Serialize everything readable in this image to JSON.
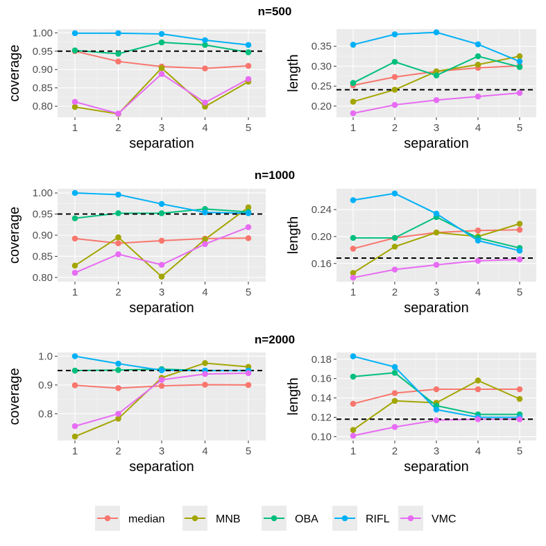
{
  "colors": {
    "median": "#F8766D",
    "MNB": "#A3A500",
    "OBA": "#00BF7D",
    "RIFL": "#00B0F6",
    "VMC": "#E76BF3"
  },
  "legend": {
    "entries": [
      "median",
      "MNB",
      "OBA",
      "RIFL",
      "VMC"
    ]
  },
  "chart_data": [
    {
      "row_title": "n=500",
      "type": "line",
      "xlabel": "separation",
      "ylabel": "coverage",
      "x": [
        1,
        2,
        3,
        4,
        5
      ],
      "xticks": [
        "1",
        "2",
        "3",
        "4",
        "5"
      ],
      "ylim": [
        0.77,
        1.01
      ],
      "yticks": [
        0.8,
        0.85,
        0.9,
        0.95,
        1.0
      ],
      "ytick_labels": [
        "0.80",
        "0.85",
        "0.90",
        "0.95",
        "1.00"
      ],
      "reference_line": 0.95,
      "series": [
        {
          "name": "median",
          "values": [
            0.95,
            0.922,
            0.908,
            0.903,
            0.91
          ]
        },
        {
          "name": "MNB",
          "values": [
            0.798,
            0.779,
            0.904,
            0.799,
            0.867
          ]
        },
        {
          "name": "OBA",
          "values": [
            0.952,
            0.943,
            0.974,
            0.967,
            0.947
          ]
        },
        {
          "name": "RIFL",
          "values": [
            0.999,
            0.999,
            0.997,
            0.98,
            0.967
          ]
        },
        {
          "name": "VMC",
          "values": [
            0.812,
            0.78,
            0.888,
            0.81,
            0.874
          ]
        }
      ]
    },
    {
      "row_title": "n=500",
      "type": "line",
      "xlabel": "separation",
      "ylabel": "length",
      "x": [
        1,
        2,
        3,
        4,
        5
      ],
      "xticks": [
        "1",
        "2",
        "3",
        "4",
        "5"
      ],
      "ylim": [
        0.172,
        0.393
      ],
      "yticks": [
        0.2,
        0.25,
        0.3,
        0.35
      ],
      "ytick_labels": [
        "0.20",
        "0.25",
        "0.30",
        "0.35"
      ],
      "reference_line": 0.241,
      "series": [
        {
          "name": "median",
          "values": [
            0.252,
            0.273,
            0.287,
            0.296,
            0.301
          ]
        },
        {
          "name": "MNB",
          "values": [
            0.211,
            0.241,
            0.287,
            0.304,
            0.325
          ]
        },
        {
          "name": "OBA",
          "values": [
            0.258,
            0.311,
            0.277,
            0.325,
            0.298
          ]
        },
        {
          "name": "RIFL",
          "values": [
            0.354,
            0.38,
            0.385,
            0.355,
            0.312
          ]
        },
        {
          "name": "VMC",
          "values": [
            0.182,
            0.203,
            0.215,
            0.224,
            0.233
          ]
        }
      ]
    },
    {
      "row_title": "n=1000",
      "type": "line",
      "xlabel": "separation",
      "ylabel": "coverage",
      "x": [
        1,
        2,
        3,
        4,
        5
      ],
      "xticks": [
        "1",
        "2",
        "3",
        "4",
        "5"
      ],
      "ylim": [
        0.79,
        1.01
      ],
      "yticks": [
        0.8,
        0.85,
        0.9,
        0.95,
        1.0
      ],
      "ytick_labels": [
        "0.80",
        "0.85",
        "0.90",
        "0.95",
        "1.00"
      ],
      "reference_line": 0.95,
      "series": [
        {
          "name": "median",
          "values": [
            0.892,
            0.881,
            0.887,
            0.892,
            0.893
          ]
        },
        {
          "name": "MNB",
          "values": [
            0.828,
            0.895,
            0.802,
            0.89,
            0.966
          ]
        },
        {
          "name": "OBA",
          "values": [
            0.94,
            0.952,
            0.952,
            0.962,
            0.955
          ]
        },
        {
          "name": "RIFL",
          "values": [
            1.0,
            0.996,
            0.974,
            0.954,
            0.952
          ]
        },
        {
          "name": "VMC",
          "values": [
            0.811,
            0.855,
            0.83,
            0.879,
            0.919
          ]
        }
      ]
    },
    {
      "row_title": "n=1000",
      "type": "line",
      "xlabel": "separation",
      "ylabel": "length",
      "x": [
        1,
        2,
        3,
        4,
        5
      ],
      "xticks": [
        "1",
        "2",
        "3",
        "4",
        "5"
      ],
      "ylim": [
        0.133,
        0.271
      ],
      "yticks": [
        0.16,
        0.2,
        0.24
      ],
      "ytick_labels": [
        "0.16",
        "0.20",
        "0.24"
      ],
      "reference_line": 0.168,
      "series": [
        {
          "name": "median",
          "values": [
            0.182,
            0.198,
            0.206,
            0.209,
            0.21
          ]
        },
        {
          "name": "MNB",
          "values": [
            0.146,
            0.185,
            0.206,
            0.2,
            0.219
          ]
        },
        {
          "name": "OBA",
          "values": [
            0.198,
            0.198,
            0.229,
            0.198,
            0.183
          ]
        },
        {
          "name": "RIFL",
          "values": [
            0.254,
            0.264,
            0.234,
            0.194,
            0.179
          ]
        },
        {
          "name": "VMC",
          "values": [
            0.139,
            0.151,
            0.158,
            0.164,
            0.166
          ]
        }
      ]
    },
    {
      "row_title": "n=2000",
      "type": "line",
      "xlabel": "separation",
      "ylabel": "coverage",
      "x": [
        1,
        2,
        3,
        4,
        5
      ],
      "xticks": [
        "1",
        "2",
        "3",
        "4",
        "5"
      ],
      "ylim": [
        0.707,
        1.013
      ],
      "yticks": [
        0.8,
        0.9,
        1.0
      ],
      "ytick_labels": [
        "0.8",
        "0.9",
        "1.0"
      ],
      "reference_line": 0.95,
      "series": [
        {
          "name": "median",
          "values": [
            0.899,
            0.889,
            0.897,
            0.901,
            0.9
          ]
        },
        {
          "name": "MNB",
          "values": [
            0.721,
            0.783,
            0.925,
            0.976,
            0.963
          ]
        },
        {
          "name": "OBA",
          "values": [
            0.95,
            0.952,
            0.955,
            0.95,
            0.95
          ]
        },
        {
          "name": "RIFL",
          "values": [
            1.0,
            0.974,
            0.951,
            0.95,
            0.95
          ]
        },
        {
          "name": "VMC",
          "values": [
            0.757,
            0.8,
            0.918,
            0.938,
            0.941
          ]
        }
      ]
    },
    {
      "row_title": "n=2000",
      "type": "line",
      "xlabel": "separation",
      "ylabel": "length",
      "x": [
        1,
        2,
        3,
        4,
        5
      ],
      "xticks": [
        "1",
        "2",
        "3",
        "4",
        "5"
      ],
      "ylim": [
        0.096,
        0.187
      ],
      "yticks": [
        0.1,
        0.12,
        0.14,
        0.16,
        0.18
      ],
      "ytick_labels": [
        "0.10",
        "0.12",
        "0.14",
        "0.16",
        "0.18"
      ],
      "reference_line": 0.118,
      "series": [
        {
          "name": "median",
          "values": [
            0.134,
            0.145,
            0.149,
            0.149,
            0.149
          ]
        },
        {
          "name": "MNB",
          "values": [
            0.107,
            0.137,
            0.135,
            0.158,
            0.139
          ]
        },
        {
          "name": "OBA",
          "values": [
            0.162,
            0.166,
            0.132,
            0.123,
            0.123
          ]
        },
        {
          "name": "RIFL",
          "values": [
            0.183,
            0.172,
            0.128,
            0.12,
            0.12
          ]
        },
        {
          "name": "VMC",
          "values": [
            0.101,
            0.11,
            0.117,
            0.118,
            0.118
          ]
        }
      ]
    }
  ]
}
